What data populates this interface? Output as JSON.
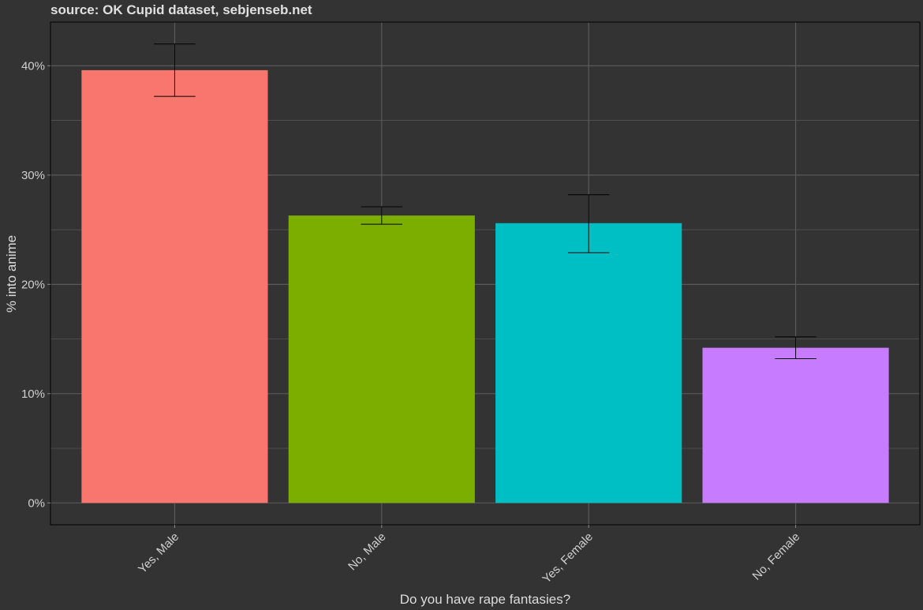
{
  "chart_data": {
    "type": "bar",
    "title": "source: OK Cupid dataset, sebjenseb.net",
    "xlabel": "Do you have rape fantasies?",
    "ylabel": "% into anime",
    "categories": [
      "Yes, Male",
      "No, Male",
      "Yes, Female",
      "No, Female"
    ],
    "values": [
      39.6,
      26.3,
      25.6,
      14.2
    ],
    "error_low": [
      37.2,
      25.5,
      22.9,
      13.2
    ],
    "error_high": [
      42.0,
      27.1,
      28.2,
      15.2
    ],
    "colors": [
      "#F8766D",
      "#7CAE00",
      "#00BFC4",
      "#C77CFF"
    ],
    "ylim": [
      -2,
      44
    ],
    "yticks": [
      0,
      10,
      20,
      30,
      40
    ],
    "ytick_labels": [
      "0%",
      "10%",
      "20%",
      "30%",
      "40%"
    ],
    "grid": true,
    "background": "#333333",
    "panel_border": "#000000",
    "gridline_color": "#5a5a5a"
  }
}
